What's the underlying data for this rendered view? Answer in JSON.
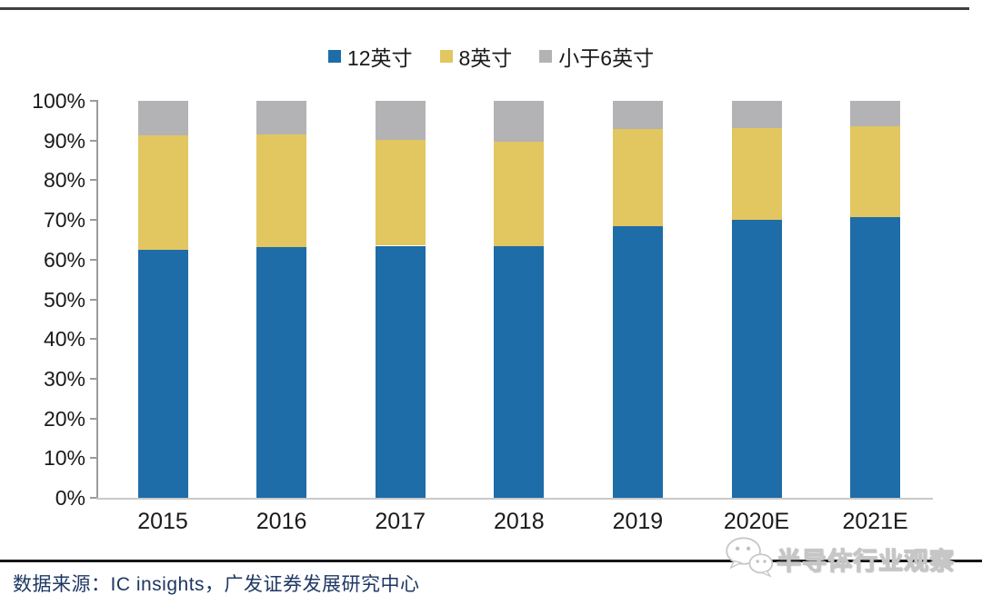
{
  "page": {
    "source_text": "数据来源：IC insights，广发证券发展研究中心",
    "watermark_text": "半导体行业观察"
  },
  "chart_data": {
    "type": "bar",
    "stacked": true,
    "title": "",
    "xlabel": "",
    "ylabel": "",
    "categories": [
      "2015",
      "2016",
      "2017",
      "2018",
      "2019",
      "2020E",
      "2021E"
    ],
    "series": [
      {
        "name": "12英寸",
        "color": "#1E6CA8",
        "values": [
          62.4,
          63.2,
          63.5,
          63.4,
          68.4,
          70.1,
          70.8
        ]
      },
      {
        "name": "8英寸",
        "color": "#E2C65F",
        "values": [
          29.0,
          28.4,
          26.7,
          26.2,
          24.6,
          23.1,
          22.8
        ]
      },
      {
        "name": "小于6英寸",
        "color": "#B3B3B5",
        "values": [
          8.6,
          8.4,
          9.8,
          10.4,
          7.0,
          6.8,
          6.4
        ]
      }
    ],
    "y_ticks": [
      "0%",
      "10%",
      "20%",
      "30%",
      "40%",
      "50%",
      "60%",
      "70%",
      "80%",
      "90%",
      "100%"
    ],
    "ylim": [
      0,
      100
    ],
    "legend_position": "top",
    "grid": false
  }
}
